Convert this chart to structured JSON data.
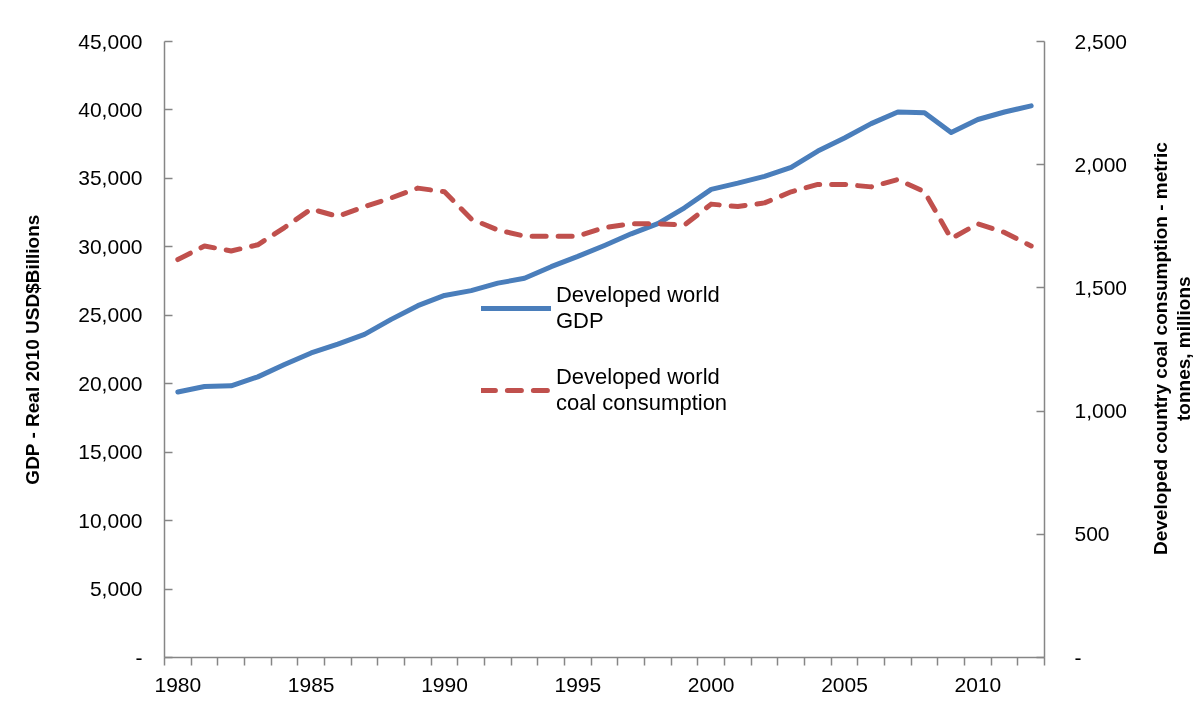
{
  "chart_data": {
    "type": "line",
    "ylabel": "GDP - Real 2010 USD$Billions",
    "y2label": "Developed country coal consumption - metric tonnes, millions",
    "x": [
      1980,
      1981,
      1982,
      1983,
      1984,
      1985,
      1986,
      1987,
      1988,
      1989,
      1990,
      1991,
      1992,
      1993,
      1994,
      1995,
      1996,
      1997,
      1998,
      1999,
      2000,
      2001,
      2002,
      2003,
      2004,
      2005,
      2006,
      2007,
      2008,
      2009,
      2010,
      2011,
      2012
    ],
    "xlim": [
      1979.5,
      2012.5
    ],
    "xticks": [
      1980,
      1985,
      1990,
      1995,
      2000,
      2005,
      2010
    ],
    "ylim": [
      0,
      45000
    ],
    "yticks": [
      {
        "value": 0,
        "label": "-"
      },
      {
        "value": 5000,
        "label": "5,000"
      },
      {
        "value": 10000,
        "label": "10,000"
      },
      {
        "value": 15000,
        "label": "15,000"
      },
      {
        "value": 20000,
        "label": "20,000"
      },
      {
        "value": 25000,
        "label": "25,000"
      },
      {
        "value": 30000,
        "label": "30,000"
      },
      {
        "value": 35000,
        "label": "35,000"
      },
      {
        "value": 40000,
        "label": "40,000"
      },
      {
        "value": 45000,
        "label": "45,000"
      }
    ],
    "y2lim": [
      0,
      2500
    ],
    "y2ticks": [
      {
        "value": 0,
        "label": "-"
      },
      {
        "value": 500,
        "label": "500"
      },
      {
        "value": 1000,
        "label": "1,000"
      },
      {
        "value": 1500,
        "label": "1,500"
      },
      {
        "value": 2000,
        "label": "2,000"
      },
      {
        "value": 2500,
        "label": "2,500"
      }
    ],
    "series": [
      {
        "name": "Developed world GDP",
        "color": "#4a7ebb",
        "line_style": "solid",
        "values": [
          19400,
          19800,
          19850,
          20500,
          21400,
          22250,
          22900,
          23600,
          24700,
          25700,
          26450,
          26800,
          27350,
          27700,
          28550,
          29300,
          30100,
          30950,
          31700,
          32850,
          34200,
          34650,
          35150,
          35800,
          37000,
          37950,
          39000,
          39850,
          39800,
          38350,
          39300,
          39850,
          40300
        ]
      },
      {
        "name": "Developed world coal consumption",
        "color": "#c0504d",
        "line_style": "dashed",
        "axis": "y2",
        "values": [
          1615,
          1670,
          1650,
          1675,
          1745,
          1820,
          1790,
          1830,
          1865,
          1905,
          1890,
          1780,
          1735,
          1710,
          1710,
          1710,
          1745,
          1760,
          1760,
          1755,
          1840,
          1830,
          1845,
          1890,
          1920,
          1920,
          1910,
          1940,
          1890,
          1700,
          1760,
          1725,
          1670
        ]
      }
    ],
    "legend": "center",
    "grid": false
  }
}
